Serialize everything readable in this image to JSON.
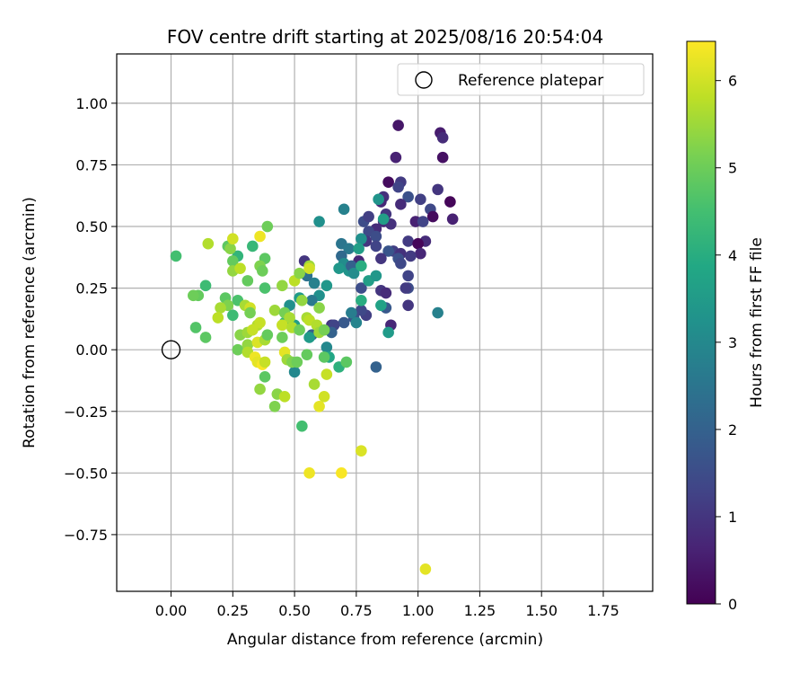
{
  "chart_data": {
    "type": "scatter",
    "title": "FOV centre drift starting at 2025/08/16 20:54:04",
    "xlabel": "Angular distance from reference (arcmin)",
    "ylabel": "Rotation from reference (arcmin)",
    "xlim": [
      -0.22,
      1.95
    ],
    "ylim": [
      -0.98,
      1.2
    ],
    "xticks": [
      0.0,
      0.25,
      0.5,
      0.75,
      1.0,
      1.25,
      1.5,
      1.75
    ],
    "xtick_labels": [
      "0.00",
      "0.25",
      "0.50",
      "0.75",
      "1.00",
      "1.25",
      "1.50",
      "1.75"
    ],
    "yticks": [
      -0.75,
      -0.5,
      -0.25,
      0.0,
      0.25,
      0.5,
      0.75,
      1.0
    ],
    "ytick_labels": [
      "−0.75",
      "−0.50",
      "−0.25",
      "0.00",
      "0.25",
      "0.50",
      "0.75",
      "1.00"
    ],
    "grid": true,
    "legend": {
      "placement": "top-right",
      "entries": [
        "Reference platepar"
      ]
    },
    "reference_point": {
      "x": 0.0,
      "y": 0.0
    },
    "colorbar": {
      "label": "Hours from first FF file",
      "colormap": "viridis",
      "range": [
        0,
        6.45
      ],
      "ticks": [
        0,
        1,
        2,
        3,
        4,
        5,
        6
      ],
      "tick_labels": [
        "0",
        "1",
        "2",
        "3",
        "4",
        "5",
        "6"
      ]
    },
    "series": [
      {
        "points": [
          [
            0.92,
            0.91,
            0.4
          ],
          [
            0.91,
            0.78,
            0.6
          ],
          [
            1.09,
            0.88,
            0.5
          ],
          [
            1.1,
            0.86,
            0.8
          ],
          [
            1.1,
            0.78,
            0.3
          ],
          [
            0.88,
            0.68,
            0.2
          ],
          [
            0.93,
            0.68,
            1.1
          ],
          [
            0.92,
            0.66,
            1.3
          ],
          [
            1.08,
            0.65,
            1.0
          ],
          [
            0.86,
            0.62,
            0.9
          ],
          [
            0.96,
            0.62,
            1.6
          ],
          [
            1.01,
            0.61,
            1.2
          ],
          [
            1.13,
            0.6,
            0.1
          ],
          [
            0.85,
            0.6,
            0.7
          ],
          [
            0.93,
            0.59,
            0.8
          ],
          [
            1.05,
            0.57,
            1.4
          ],
          [
            0.87,
            0.55,
            1.0
          ],
          [
            1.06,
            0.54,
            0.2
          ],
          [
            1.14,
            0.53,
            0.6
          ],
          [
            0.99,
            0.52,
            0.6
          ],
          [
            0.86,
            0.52,
            0.8
          ],
          [
            1.02,
            0.52,
            1.3
          ],
          [
            0.89,
            0.51,
            0.9
          ],
          [
            0.78,
            0.52,
            1.5
          ],
          [
            0.8,
            0.54,
            1.2
          ],
          [
            0.83,
            0.49,
            0.8
          ],
          [
            0.8,
            0.48,
            1.4
          ],
          [
            0.83,
            0.46,
            1.5
          ],
          [
            0.79,
            0.44,
            1.0
          ],
          [
            0.96,
            0.44,
            1.1
          ],
          [
            1.03,
            0.44,
            0.8
          ],
          [
            1.0,
            0.43,
            0.1
          ],
          [
            0.83,
            0.42,
            1.3
          ],
          [
            0.9,
            0.4,
            1.2
          ],
          [
            0.93,
            0.39,
            0.9
          ],
          [
            0.88,
            0.4,
            1.7
          ],
          [
            1.01,
            0.39,
            0.7
          ],
          [
            0.97,
            0.38,
            1.1
          ],
          [
            0.92,
            0.37,
            1.6
          ],
          [
            0.76,
            0.36,
            0.7
          ],
          [
            0.85,
            0.37,
            1.0
          ],
          [
            0.93,
            0.35,
            1.4
          ],
          [
            0.96,
            0.3,
            1.3
          ],
          [
            0.96,
            0.25,
            1.5
          ],
          [
            0.95,
            0.25,
            1.1
          ],
          [
            0.77,
            0.25,
            1.5
          ],
          [
            0.85,
            0.24,
            1.0
          ],
          [
            0.87,
            0.23,
            0.8
          ],
          [
            0.96,
            0.18,
            1.0
          ],
          [
            0.87,
            0.17,
            1.8
          ],
          [
            1.08,
            0.15,
            2.8
          ],
          [
            0.79,
            0.14,
            1.2
          ],
          [
            0.74,
            0.13,
            1.6
          ],
          [
            0.77,
            0.16,
            1.4
          ],
          [
            0.89,
            0.1,
            0.7
          ],
          [
            0.7,
            0.11,
            1.8
          ],
          [
            0.65,
            0.1,
            1.0
          ],
          [
            0.66,
            0.1,
            1.3
          ],
          [
            0.65,
            0.07,
            2.0
          ],
          [
            0.57,
            0.06,
            1.9
          ],
          [
            0.88,
            0.07,
            3.5
          ],
          [
            0.83,
            -0.07,
            2.0
          ],
          [
            0.63,
            0.01,
            3.0
          ],
          [
            0.7,
            0.57,
            2.8
          ],
          [
            0.6,
            0.52,
            3.2
          ],
          [
            0.77,
            0.45,
            3.2
          ],
          [
            0.69,
            0.43,
            2.5
          ],
          [
            0.72,
            0.41,
            2.6
          ],
          [
            0.84,
            0.61,
            3.3
          ],
          [
            0.86,
            0.53,
            3.6
          ],
          [
            0.76,
            0.41,
            3.6
          ],
          [
            0.69,
            0.38,
            2.2
          ],
          [
            0.7,
            0.35,
            3.1
          ],
          [
            0.68,
            0.33,
            3.4
          ],
          [
            0.72,
            0.32,
            3.3
          ],
          [
            0.73,
            0.34,
            2.0
          ],
          [
            0.74,
            0.31,
            3.1
          ],
          [
            0.77,
            0.34,
            4.0
          ],
          [
            0.8,
            0.28,
            3.6
          ],
          [
            0.83,
            0.3,
            3.4
          ],
          [
            0.58,
            0.27,
            2.8
          ],
          [
            0.63,
            0.26,
            3.4
          ],
          [
            0.6,
            0.22,
            3.2
          ],
          [
            0.55,
            0.3,
            2.4
          ],
          [
            0.54,
            0.36,
            1.0
          ],
          [
            0.52,
            0.21,
            3.5
          ],
          [
            0.57,
            0.2,
            2.6
          ],
          [
            0.48,
            0.18,
            3.2
          ],
          [
            0.77,
            0.2,
            4.0
          ],
          [
            0.73,
            0.15,
            2.7
          ],
          [
            0.75,
            0.11,
            2.9
          ],
          [
            0.85,
            0.18,
            3.7
          ],
          [
            0.5,
            0.1,
            3.6
          ],
          [
            0.46,
            0.11,
            4.2
          ],
          [
            0.56,
            0.05,
            3.5
          ],
          [
            0.5,
            -0.09,
            3.0
          ],
          [
            0.64,
            -0.03,
            3.8
          ],
          [
            0.68,
            -0.07,
            4.1
          ],
          [
            0.71,
            -0.05,
            4.8
          ],
          [
            0.53,
            -0.31,
            4.5
          ],
          [
            0.39,
            0.5,
            5.0
          ],
          [
            0.33,
            0.42,
            4.3
          ],
          [
            0.38,
            0.37,
            4.8
          ],
          [
            0.36,
            0.34,
            5.2
          ],
          [
            0.27,
            0.38,
            4.2
          ],
          [
            0.25,
            0.36,
            4.9
          ],
          [
            0.23,
            0.42,
            4.8
          ],
          [
            0.24,
            0.41,
            5.3
          ],
          [
            0.15,
            0.43,
            5.7
          ],
          [
            0.25,
            0.45,
            6.0
          ],
          [
            0.36,
            0.46,
            6.3
          ],
          [
            0.02,
            0.38,
            4.5
          ],
          [
            0.14,
            0.26,
            4.4
          ],
          [
            0.11,
            0.22,
            4.9
          ],
          [
            0.09,
            0.22,
            5.0
          ],
          [
            0.22,
            0.21,
            4.8
          ],
          [
            0.27,
            0.2,
            4.6
          ],
          [
            0.23,
            0.18,
            5.2
          ],
          [
            0.3,
            0.18,
            5.6
          ],
          [
            0.32,
            0.17,
            6.0
          ],
          [
            0.31,
            0.28,
            4.9
          ],
          [
            0.25,
            0.32,
            5.4
          ],
          [
            0.28,
            0.33,
            5.8
          ],
          [
            0.37,
            0.32,
            5.0
          ],
          [
            0.38,
            0.25,
            4.6
          ],
          [
            0.2,
            0.17,
            5.6
          ],
          [
            0.25,
            0.14,
            4.4
          ],
          [
            0.19,
            0.13,
            5.8
          ],
          [
            0.32,
            0.15,
            5.1
          ],
          [
            0.35,
            0.1,
            5.7
          ],
          [
            0.36,
            0.11,
            5.9
          ],
          [
            0.1,
            0.09,
            4.7
          ],
          [
            0.14,
            0.05,
            4.8
          ],
          [
            0.28,
            0.06,
            5.3
          ],
          [
            0.31,
            0.07,
            5.5
          ],
          [
            0.33,
            0.08,
            5.9
          ],
          [
            0.27,
            0.0,
            5.0
          ],
          [
            0.31,
            0.02,
            5.4
          ],
          [
            0.35,
            0.03,
            6.1
          ],
          [
            0.38,
            0.04,
            5.6
          ],
          [
            0.39,
            0.06,
            4.9
          ],
          [
            0.31,
            -0.01,
            5.7
          ],
          [
            0.34,
            -0.03,
            6.3
          ],
          [
            0.35,
            -0.05,
            6.2
          ],
          [
            0.37,
            -0.06,
            6.4
          ],
          [
            0.38,
            -0.05,
            5.9
          ],
          [
            0.38,
            -0.11,
            4.8
          ],
          [
            0.36,
            -0.16,
            5.4
          ],
          [
            0.42,
            -0.23,
            5.2
          ],
          [
            0.43,
            -0.18,
            5.3
          ],
          [
            0.46,
            -0.19,
            5.8
          ],
          [
            0.42,
            0.16,
            5.5
          ],
          [
            0.45,
            0.26,
            5.4
          ],
          [
            0.46,
            0.15,
            5.1
          ],
          [
            0.48,
            0.13,
            5.6
          ],
          [
            0.45,
            0.1,
            5.9
          ],
          [
            0.49,
            0.09,
            5.7
          ],
          [
            0.52,
            0.08,
            5.0
          ],
          [
            0.5,
            0.28,
            5.8
          ],
          [
            0.52,
            0.31,
            5.3
          ],
          [
            0.56,
            0.34,
            5.5
          ],
          [
            0.56,
            0.33,
            6.0
          ],
          [
            0.53,
            0.2,
            5.4
          ],
          [
            0.55,
            0.13,
            5.6
          ],
          [
            0.56,
            0.12,
            5.8
          ],
          [
            0.6,
            0.17,
            5.3
          ],
          [
            0.59,
            0.1,
            5.7
          ],
          [
            0.6,
            0.07,
            5.5
          ],
          [
            0.62,
            0.08,
            5.1
          ],
          [
            0.45,
            0.05,
            5.0
          ],
          [
            0.46,
            -0.01,
            6.2
          ],
          [
            0.47,
            -0.04,
            5.5
          ],
          [
            0.49,
            -0.05,
            5.2
          ],
          [
            0.51,
            -0.05,
            5.0
          ],
          [
            0.55,
            -0.02,
            4.9
          ],
          [
            0.62,
            -0.03,
            4.8
          ],
          [
            0.58,
            -0.14,
            5.6
          ],
          [
            0.62,
            -0.19,
            6.0
          ],
          [
            0.63,
            -0.1,
            5.9
          ],
          [
            0.6,
            -0.23,
            6.2
          ],
          [
            0.77,
            -0.41,
            6.1
          ],
          [
            0.56,
            -0.5,
            6.3
          ],
          [
            0.69,
            -0.5,
            6.4
          ],
          [
            1.03,
            -0.89,
            6.2
          ]
        ]
      }
    ]
  }
}
